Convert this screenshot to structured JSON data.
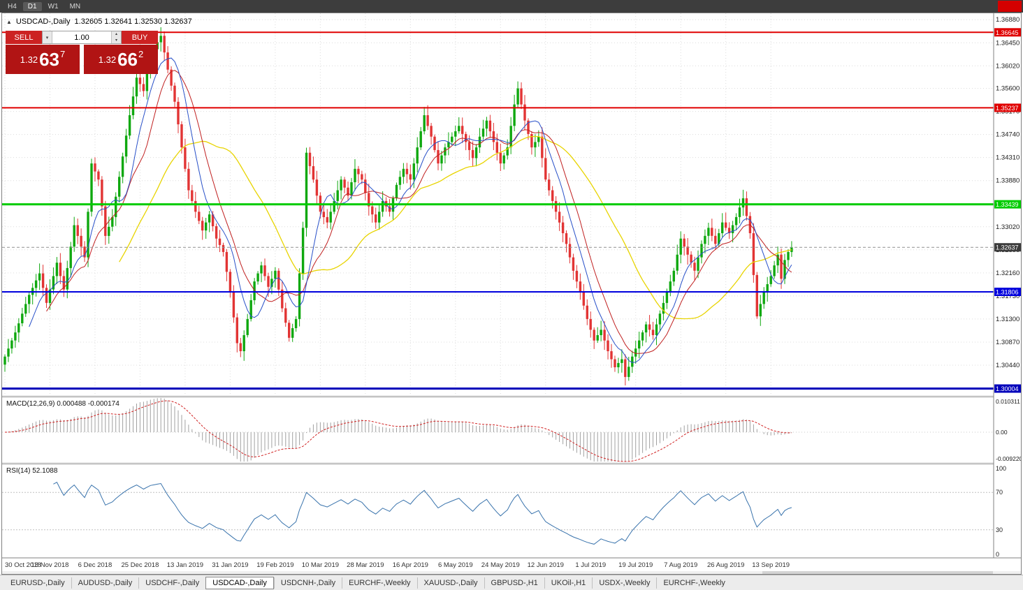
{
  "toolbar": {
    "timeframes": [
      "H4",
      "D1",
      "W1",
      "MN"
    ],
    "active_timeframe": "D1"
  },
  "chart": {
    "title_symbol": "USDCAD-,Daily",
    "title_ohlc": "1.32605 1.32641 1.32530 1.32637",
    "one_click": {
      "sell_label": "SELL",
      "buy_label": "BUY",
      "volume": "1.00",
      "sell_price": {
        "prefix": "1.32",
        "big": "63",
        "sup": "7"
      },
      "buy_price": {
        "prefix": "1.32",
        "big": "66",
        "sup": "2"
      }
    }
  },
  "chart_data": {
    "type": "candlestick",
    "symbol": "USDCAD",
    "period": "Daily",
    "price_range": {
      "top": 1.37,
      "bottom": 1.2988
    },
    "y_ticks": [
      "1.36880",
      "1.36450",
      "1.36020",
      "1.35600",
      "1.35170",
      "1.34740",
      "1.34310",
      "1.33880",
      "1.33450",
      "1.33020",
      "1.32590",
      "1.32160",
      "1.31730",
      "1.31300",
      "1.30870",
      "1.30440"
    ],
    "x_labels": [
      "30 Oct 2018",
      "18 Nov 2018",
      "6 Dec 2018",
      "25 Dec 2018",
      "13 Jan 2019",
      "31 Jan 2019",
      "19 Feb 2019",
      "10 Mar 2019",
      "28 Mar 2019",
      "16 Apr 2019",
      "6 May 2019",
      "24 May 2019",
      "12 Jun 2019",
      "1 Jul 2019",
      "19 Jul 2019",
      "7 Aug 2019",
      "26 Aug 2019",
      "13 Sep 2019"
    ],
    "x_label_every": 13,
    "closes": [
      1.306,
      1.3075,
      1.309,
      1.3105,
      1.3122,
      1.314,
      1.3158,
      1.3175,
      1.3188,
      1.3202,
      1.3215,
      1.3188,
      1.316,
      1.3185,
      1.321,
      1.3235,
      1.321,
      1.3185,
      1.3225,
      1.3265,
      1.3305,
      1.3285,
      1.3265,
      1.3245,
      1.333,
      1.342,
      1.3405,
      1.339,
      1.334,
      1.3285,
      1.3302,
      1.332,
      1.3358,
      1.3395,
      1.3433,
      1.3472,
      1.351,
      1.3545,
      1.358,
      1.3568,
      1.3555,
      1.3588,
      1.362,
      1.3633,
      1.3646,
      1.3658,
      1.3627,
      1.3595,
      1.3565,
      1.3535,
      1.3493,
      1.345,
      1.341,
      1.337,
      1.335,
      1.333,
      1.3313,
      1.3295,
      1.331,
      1.3325,
      1.3303,
      1.328,
      1.3268,
      1.3255,
      1.3218,
      1.318,
      1.3133,
      1.3085,
      1.307,
      1.31,
      1.313,
      1.3165,
      1.32,
      1.3215,
      1.323,
      1.321,
      1.319,
      1.3205,
      1.322,
      1.3185,
      1.315,
      1.3123,
      1.3095,
      1.3113,
      1.313,
      1.3215,
      1.33,
      1.344,
      1.3415,
      1.339,
      1.336,
      1.333,
      1.332,
      1.331,
      1.333,
      1.335,
      1.337,
      1.339,
      1.3375,
      1.336,
      1.3385,
      1.341,
      1.34,
      1.339,
      1.3365,
      1.334,
      1.3325,
      1.331,
      1.333,
      1.335,
      1.334,
      1.333,
      1.3355,
      1.338,
      1.3395,
      1.341,
      1.34,
      1.339,
      1.342,
      1.345,
      1.348,
      1.351,
      1.349,
      1.347,
      1.3445,
      1.342,
      1.3435,
      1.345,
      1.346,
      1.347,
      1.348,
      1.349,
      1.3475,
      1.346,
      1.3445,
      1.343,
      1.345,
      1.347,
      1.3485,
      1.35,
      1.348,
      1.346,
      1.344,
      1.342,
      1.3435,
      1.345,
      1.349,
      1.353,
      1.356,
      1.353,
      1.35,
      1.3475,
      1.345,
      1.346,
      1.347,
      1.343,
      1.339,
      1.337,
      1.335,
      1.333,
      1.331,
      1.329,
      1.327,
      1.3245,
      1.322,
      1.32,
      1.318,
      1.3155,
      1.313,
      1.311,
      1.309,
      1.31,
      1.311,
      1.309,
      1.307,
      1.3055,
      1.304,
      1.3048,
      1.3055,
      1.3022,
      1.3041,
      1.306,
      1.3075,
      1.309,
      1.3105,
      1.312,
      1.311,
      1.31,
      1.312,
      1.314,
      1.316,
      1.318,
      1.32,
      1.322,
      1.325,
      1.328,
      1.3265,
      1.325,
      1.3235,
      1.322,
      1.3245,
      1.327,
      1.3285,
      1.33,
      1.3285,
      1.327,
      1.329,
      1.331,
      1.33,
      1.329,
      1.3305,
      1.332,
      1.3338,
      1.3355,
      1.3322,
      1.329,
      1.3212,
      1.3135,
      1.3158,
      1.318,
      1.3195,
      1.321,
      1.323,
      1.325,
      1.3205,
      1.324,
      1.3255,
      1.32637
    ],
    "h_lines": [
      {
        "price": 1.36645,
        "label": "1.36645",
        "color": "#e00000",
        "width": 2
      },
      {
        "price": 1.35237,
        "label": "1.35237",
        "color": "#e00000",
        "width": 2
      },
      {
        "price": 1.33439,
        "label": "1.33439",
        "color": "#00cc00",
        "width": 3
      },
      {
        "price": 1.31806,
        "label": "1.31806",
        "color": "#0000dd",
        "width": 2
      },
      {
        "price": 1.30004,
        "label": "1.30004",
        "color": "#0000bb",
        "width": 3
      }
    ],
    "current_price": {
      "value": 1.32637,
      "label": "1.32637",
      "color": "#3c3c3c"
    },
    "ma": [
      {
        "name": "slow",
        "period": 34,
        "color": "#e8d400",
        "width": 1.3
      },
      {
        "name": "mid",
        "period": 13,
        "color": "#c02020",
        "width": 1
      },
      {
        "name": "fast",
        "period": 8,
        "color": "#2850c8",
        "width": 1
      }
    ],
    "colors": {
      "up": "#0fa80f",
      "down": "#e23434",
      "grid": "#dcdcdc",
      "macd_hist": "#a0a0a0",
      "macd_signal": "#d02020"
    },
    "macd": {
      "label": "MACD(12,26,9)",
      "values": "0.000488 -0.000174",
      "params": [
        12,
        26,
        9
      ],
      "axis": [
        "0.010311",
        "0.00",
        "-0.009220"
      ]
    },
    "rsi": {
      "label": "RSI(14)",
      "value": "52.1088",
      "period": 14,
      "axis": [
        "100",
        "70",
        "30",
        "0"
      ],
      "levels": [
        70,
        30
      ],
      "color": "#3973ac"
    }
  },
  "bottom_tabs": {
    "active_index": 3,
    "items": [
      {
        "label": "EURUSD-,Daily"
      },
      {
        "label": "AUDUSD-,Daily"
      },
      {
        "label": "USDCHF-,Daily"
      },
      {
        "label": "USDCAD-,Daily"
      },
      {
        "label": "USDCNH-,Daily"
      },
      {
        "label": "EURCHF-,Weekly"
      },
      {
        "label": "XAUUSD-,Daily"
      },
      {
        "label": "GBPUSD-,H1"
      },
      {
        "label": "UKOil-,H1"
      },
      {
        "label": "USDX-,Weekly"
      },
      {
        "label": "EURCHF-,Weekly"
      }
    ]
  }
}
